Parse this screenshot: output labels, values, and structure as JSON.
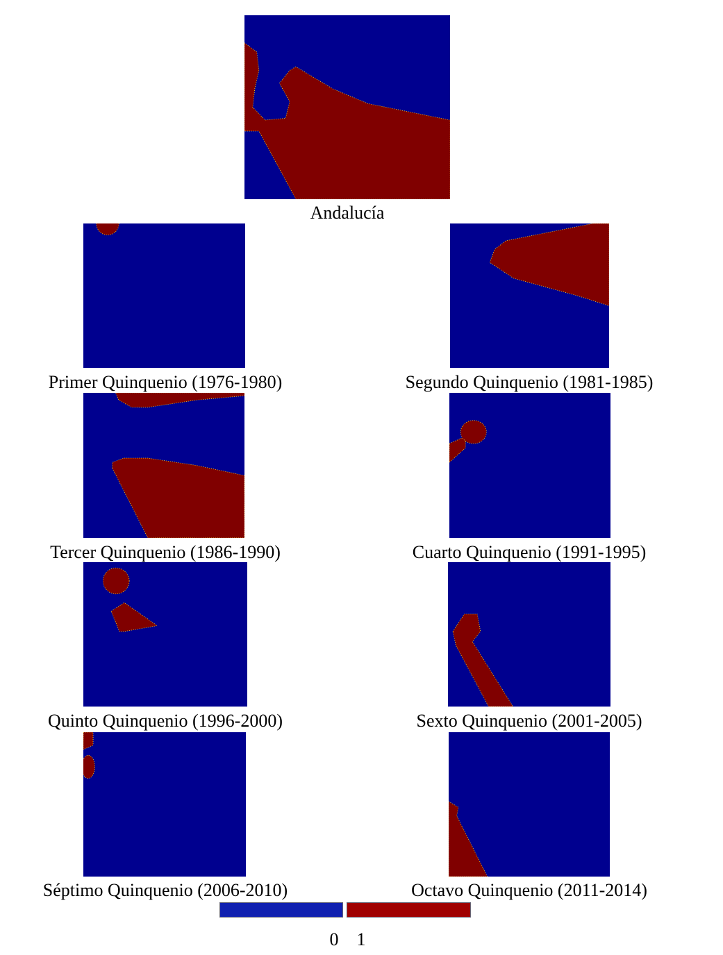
{
  "panels": [
    {
      "label": "Andalucía"
    },
    {
      "label": "Primer Quinquenio (1976-1980)"
    },
    {
      "label": "Segundo Quinquenio (1981-1985)"
    },
    {
      "label": "Tercer Quinquenio (1986-1990)"
    },
    {
      "label": "Cuarto Quinquenio (1991-1995)"
    },
    {
      "label": "Quinto Quinquenio (1996-2000)"
    },
    {
      "label": "Sexto Quinquenio (2001-2005)"
    },
    {
      "label": "Séptimo Quinquenio (2006-2010)"
    },
    {
      "label": "Octavo Quinquenio (2011-2014)"
    }
  ],
  "legend": {
    "labels": [
      "0",
      "1"
    ]
  }
}
